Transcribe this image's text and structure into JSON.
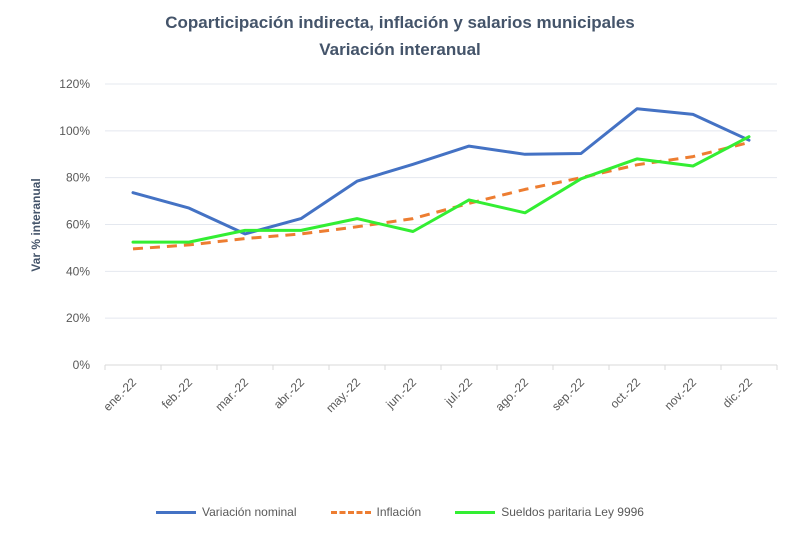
{
  "chart_data": {
    "type": "line",
    "title": "Coparticipación indirecta, inflación y salarios municipales",
    "subtitle": "Variación interanual",
    "xlabel": "",
    "ylabel": "Var % interanual",
    "ylim": [
      0,
      120
    ],
    "yticks": [
      "0%",
      "20%",
      "40%",
      "60%",
      "80%",
      "100%",
      "120%"
    ],
    "ytick_values": [
      0,
      20,
      40,
      60,
      80,
      100,
      120
    ],
    "grid": true,
    "legend_position": "bottom",
    "categories": [
      "ene.-22",
      "feb.-22",
      "mar.-22",
      "abr.-22",
      "may.-22",
      "jun.-22",
      "jul.-22",
      "ago.-22",
      "sep.-22",
      "oct.-22",
      "nov.-22",
      "dic.-22"
    ],
    "series": [
      {
        "name": "Variación nominal",
        "color": "#4472c4",
        "dash": "solid",
        "values": [
          73.6,
          67.0,
          56.0,
          62.5,
          78.5,
          85.7,
          93.5,
          90.0,
          90.3,
          109.4,
          107.0,
          96.0
        ]
      },
      {
        "name": "Inflación",
        "color": "#ed7d31",
        "dash": "dashed",
        "values": [
          49.6,
          51.3,
          54.0,
          56.0,
          59.0,
          62.5,
          69.0,
          75.0,
          80.0,
          85.5,
          89.0,
          95.0
        ]
      },
      {
        "name": "Sueldos paritaria Ley 9996",
        "color": "#33ee33",
        "dash": "solid",
        "values": [
          52.5,
          52.5,
          57.5,
          57.5,
          62.5,
          57.0,
          70.5,
          65.0,
          79.5,
          88.0,
          85.0,
          97.5
        ]
      }
    ]
  }
}
